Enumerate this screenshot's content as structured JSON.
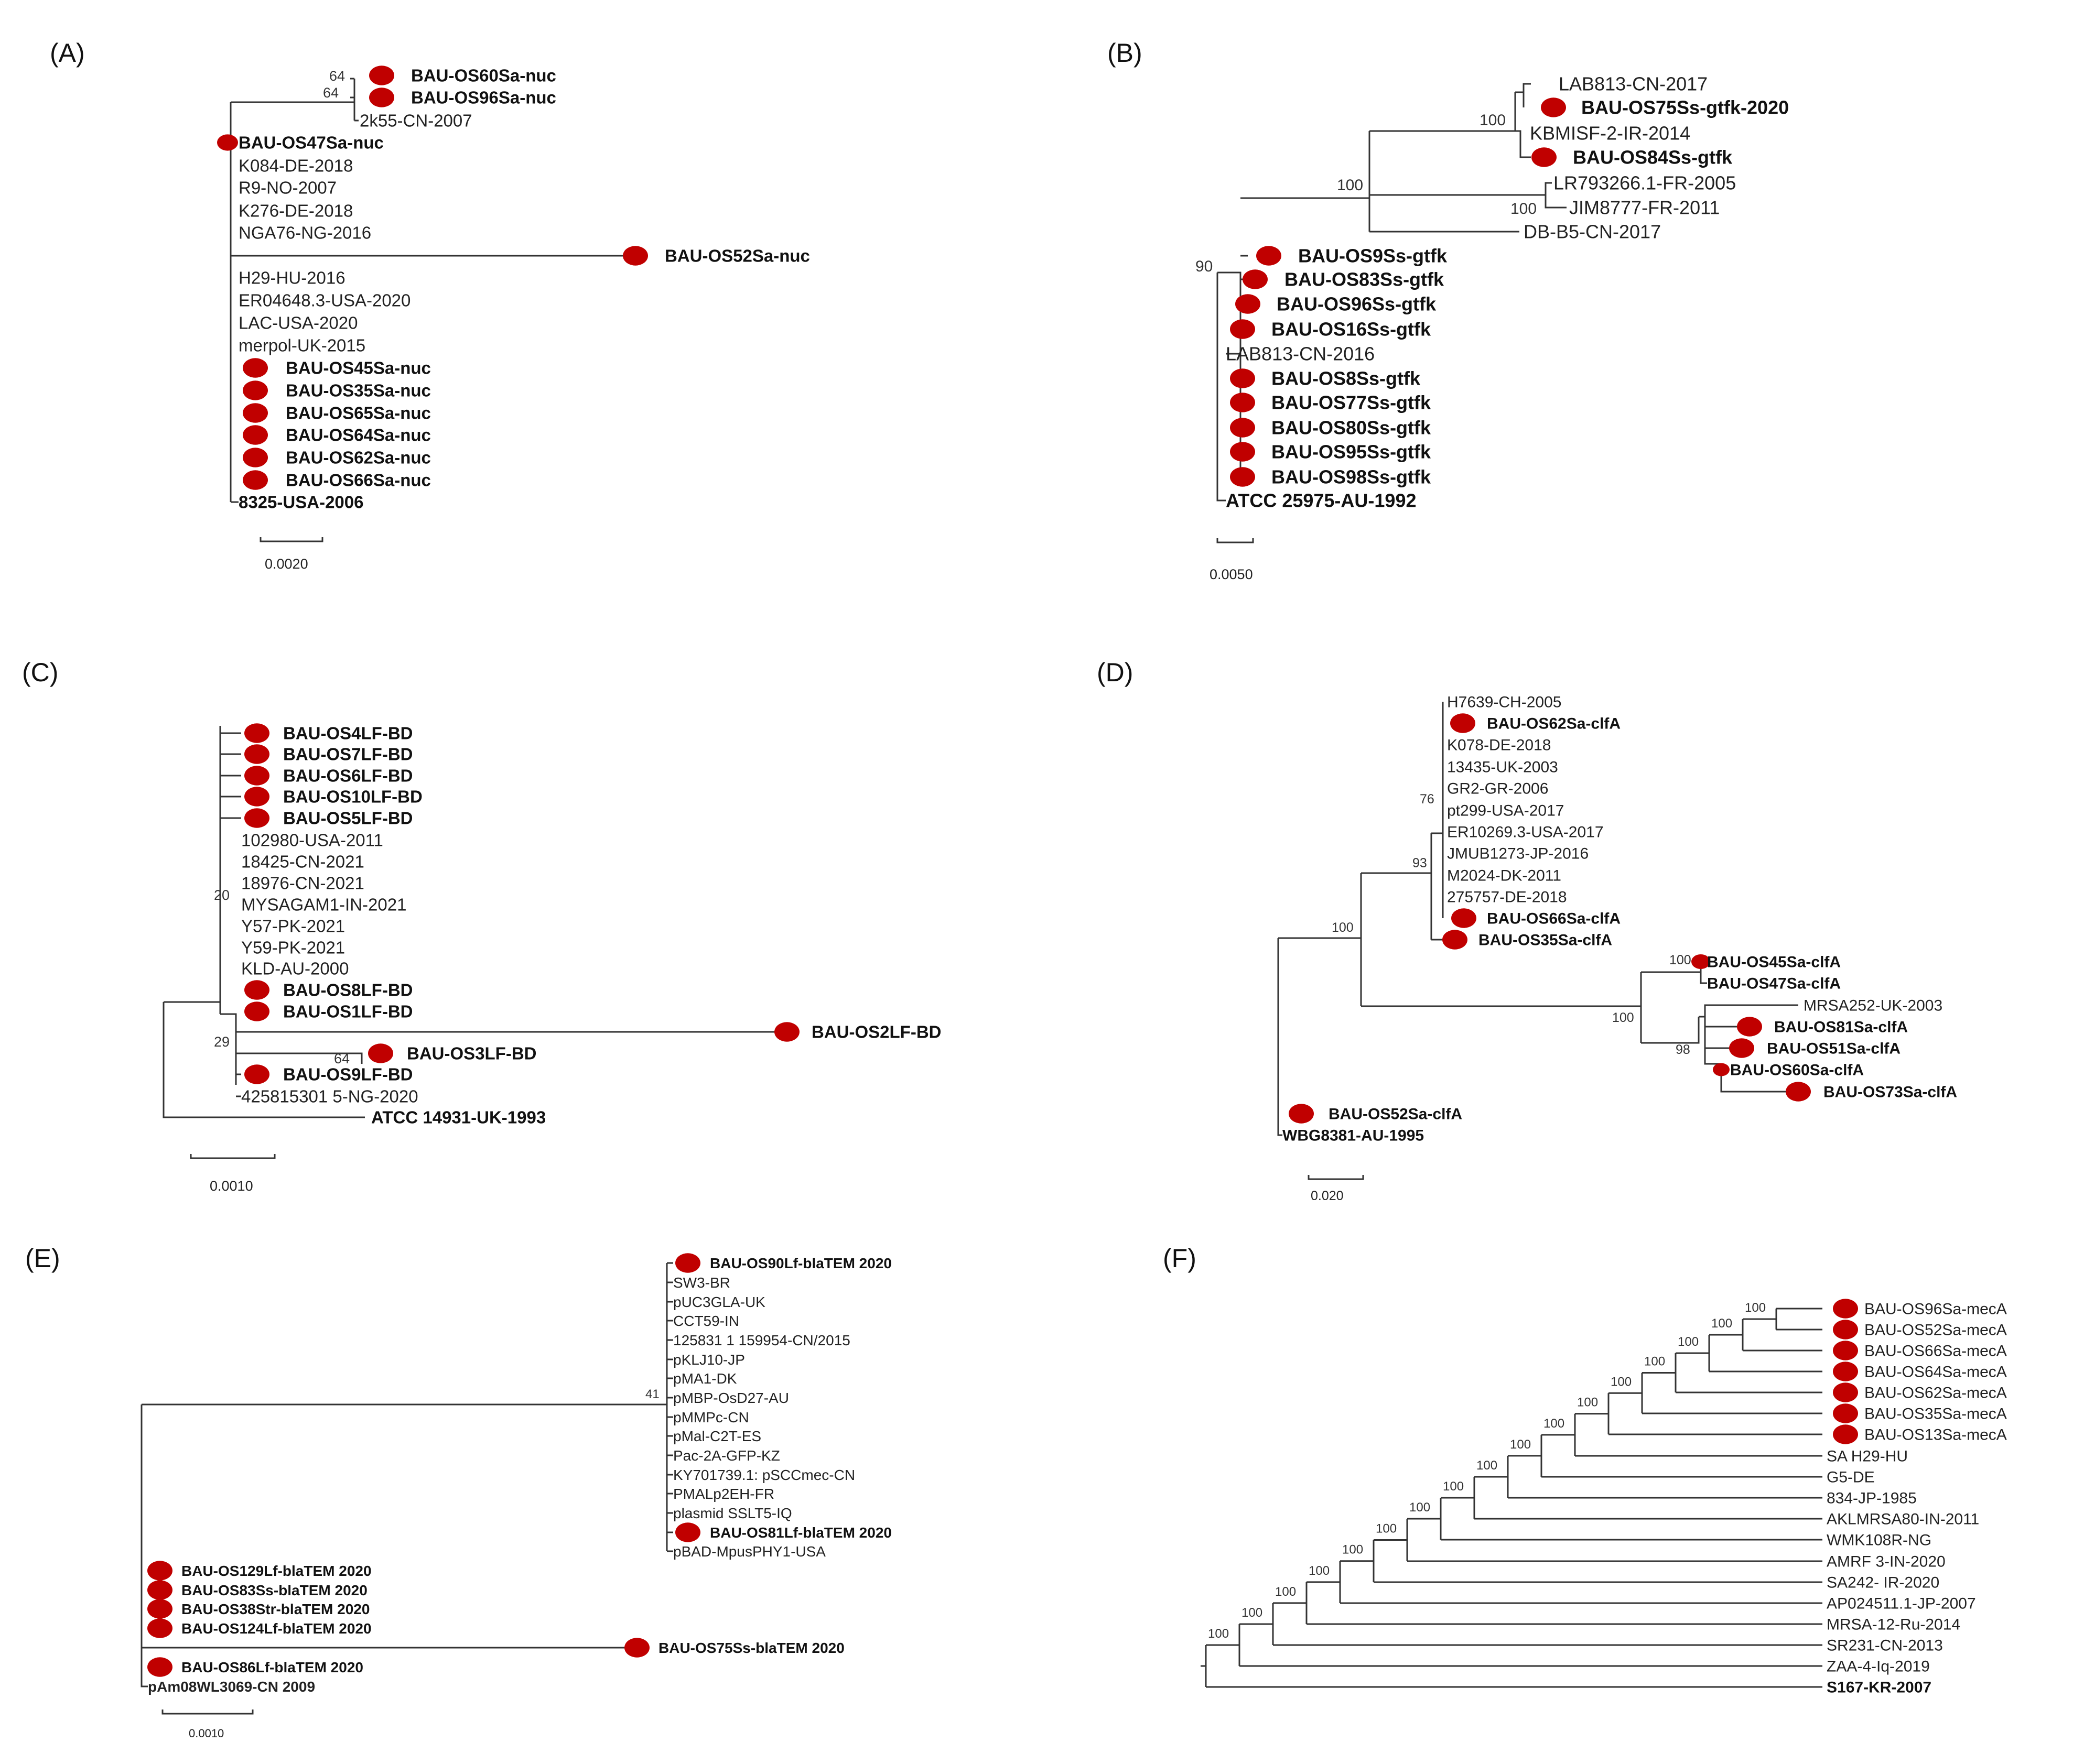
{
  "colors": {
    "marker": "#c00000",
    "outgroup": "#22b14c",
    "branch": "#333333",
    "text": "#222222"
  },
  "panels": [
    {
      "label": "(A)",
      "scale_label": "0.0020",
      "leaves": [
        {
          "text": "BAU-OS60Sa-nuc",
          "bold": true,
          "marker": true
        },
        {
          "text": "BAU-OS96Sa-nuc",
          "bold": true,
          "marker": true
        },
        {
          "text": "2k55-CN-2007",
          "bold": false,
          "marker": false
        },
        {
          "text": "BAU-OS47Sa-nuc",
          "bold": true,
          "marker": true
        },
        {
          "text": "K084-DE-2018",
          "bold": false,
          "marker": false
        },
        {
          "text": "R9-NO-2007",
          "bold": false,
          "marker": false
        },
        {
          "text": "K276-DE-2018",
          "bold": false,
          "marker": false
        },
        {
          "text": "NGA76-NG-2016",
          "bold": false,
          "marker": false
        },
        {
          "text": "BAU-OS52Sa-nuc",
          "bold": true,
          "marker": true
        },
        {
          "text": "H29-HU-2016",
          "bold": false,
          "marker": false
        },
        {
          "text": "ER04648.3-USA-2020",
          "bold": false,
          "marker": false
        },
        {
          "text": "LAC-USA-2020",
          "bold": false,
          "marker": false
        },
        {
          "text": "merpol-UK-2015",
          "bold": false,
          "marker": false
        },
        {
          "text": "BAU-OS45Sa-nuc",
          "bold": true,
          "marker": true
        },
        {
          "text": "BAU-OS35Sa-nuc",
          "bold": true,
          "marker": true
        },
        {
          "text": "BAU-OS65Sa-nuc",
          "bold": true,
          "marker": true
        },
        {
          "text": "BAU-OS64Sa-nuc",
          "bold": true,
          "marker": true
        },
        {
          "text": "BAU-OS62Sa-nuc",
          "bold": true,
          "marker": true
        },
        {
          "text": "BAU-OS66Sa-nuc",
          "bold": true,
          "marker": true
        },
        {
          "text": "8325-USA-2006",
          "bold": true,
          "marker": false,
          "outgroup": true
        }
      ],
      "bootstraps": [
        "64",
        "64"
      ]
    },
    {
      "label": "(B)",
      "scale_label": "0.0050",
      "leaves": [
        {
          "text": "LAB813-CN-2017",
          "bold": false,
          "marker": false
        },
        {
          "text": "BAU-OS75Ss-gtfk-2020",
          "bold": true,
          "marker": true
        },
        {
          "text": "KBMISF-2-IR-2014",
          "bold": false,
          "marker": false
        },
        {
          "text": "BAU-OS84Ss-gtfk",
          "bold": true,
          "marker": true
        },
        {
          "text": "LR793266.1-FR-2005",
          "bold": false,
          "marker": false
        },
        {
          "text": "JIM8777-FR-2011",
          "bold": false,
          "marker": false
        },
        {
          "text": "DB-B5-CN-2017",
          "bold": false,
          "marker": false
        },
        {
          "text": "BAU-OS9Ss-gtfk",
          "bold": true,
          "marker": true
        },
        {
          "text": "BAU-OS83Ss-gtfk",
          "bold": true,
          "marker": true
        },
        {
          "text": "BAU-OS96Ss-gtfk",
          "bold": true,
          "marker": true
        },
        {
          "text": "BAU-OS16Ss-gtfk",
          "bold": true,
          "marker": true
        },
        {
          "text": "LAB813-CN-2016",
          "bold": false,
          "marker": false
        },
        {
          "text": "BAU-OS8Ss-gtfk",
          "bold": true,
          "marker": true
        },
        {
          "text": "BAU-OS77Ss-gtfk",
          "bold": true,
          "marker": true
        },
        {
          "text": "BAU-OS80Ss-gtfk",
          "bold": true,
          "marker": true
        },
        {
          "text": "BAU-OS95Ss-gtfk",
          "bold": true,
          "marker": true
        },
        {
          "text": "BAU-OS98Ss-gtfk",
          "bold": true,
          "marker": true
        },
        {
          "text": "ATCC 25975-AU-1992",
          "bold": true,
          "marker": false,
          "outgroup": true
        }
      ],
      "bootstraps": [
        "100",
        "100",
        "100",
        "90"
      ]
    },
    {
      "label": "(C)",
      "scale_label": "0.0010",
      "leaves": [
        {
          "text": "BAU-OS4LF-BD",
          "bold": true,
          "marker": true
        },
        {
          "text": "BAU-OS7LF-BD",
          "bold": true,
          "marker": true
        },
        {
          "text": "BAU-OS6LF-BD",
          "bold": true,
          "marker": true
        },
        {
          "text": "BAU-OS10LF-BD",
          "bold": true,
          "marker": true
        },
        {
          "text": "BAU-OS5LF-BD",
          "bold": true,
          "marker": true
        },
        {
          "text": "102980-USA-2011",
          "bold": false,
          "marker": false
        },
        {
          "text": "18425-CN-2021",
          "bold": false,
          "marker": false
        },
        {
          "text": "18976-CN-2021",
          "bold": false,
          "marker": false
        },
        {
          "text": "MYSAGAM1-IN-2021",
          "bold": false,
          "marker": false
        },
        {
          "text": "Y57-PK-2021",
          "bold": false,
          "marker": false
        },
        {
          "text": "Y59-PK-2021",
          "bold": false,
          "marker": false
        },
        {
          "text": "KLD-AU-2000",
          "bold": false,
          "marker": false
        },
        {
          "text": "BAU-OS8LF-BD",
          "bold": true,
          "marker": true
        },
        {
          "text": "BAU-OS1LF-BD",
          "bold": true,
          "marker": true
        },
        {
          "text": "BAU-OS2LF-BD",
          "bold": true,
          "marker": true
        },
        {
          "text": "BAU-OS3LF-BD",
          "bold": true,
          "marker": true
        },
        {
          "text": "BAU-OS9LF-BD",
          "bold": true,
          "marker": true
        },
        {
          "text": "425815301 5-NG-2020",
          "bold": false,
          "marker": false
        },
        {
          "text": "ATCC 14931-UK-1993",
          "bold": true,
          "marker": false,
          "outgroup": true
        }
      ],
      "bootstraps": [
        "20",
        "29",
        "64"
      ]
    },
    {
      "label": "(D)",
      "scale_label": "0.020",
      "leaves": [
        {
          "text": "H7639-CH-2005",
          "bold": false,
          "marker": false
        },
        {
          "text": "BAU-OS62Sa-clfA",
          "bold": true,
          "marker": true
        },
        {
          "text": "K078-DE-2018",
          "bold": false,
          "marker": false
        },
        {
          "text": "13435-UK-2003",
          "bold": false,
          "marker": false
        },
        {
          "text": "GR2-GR-2006",
          "bold": false,
          "marker": false
        },
        {
          "text": "pt299-USA-2017",
          "bold": false,
          "marker": false
        },
        {
          "text": "ER10269.3-USA-2017",
          "bold": false,
          "marker": false
        },
        {
          "text": "JMUB1273-JP-2016",
          "bold": false,
          "marker": false
        },
        {
          "text": "M2024-DK-2011",
          "bold": false,
          "marker": false
        },
        {
          "text": "275757-DE-2018",
          "bold": false,
          "marker": false
        },
        {
          "text": "BAU-OS66Sa-clfA",
          "bold": true,
          "marker": true
        },
        {
          "text": "BAU-OS35Sa-clfA",
          "bold": true,
          "marker": true
        },
        {
          "text": "BAU-OS45Sa-clfA",
          "bold": true,
          "marker": true
        },
        {
          "text": "BAU-OS47Sa-clfA",
          "bold": true,
          "marker": false
        },
        {
          "text": "MRSA252-UK-2003",
          "bold": false,
          "marker": false
        },
        {
          "text": "BAU-OS81Sa-clfA",
          "bold": true,
          "marker": true
        },
        {
          "text": "BAU-OS51Sa-clfA",
          "bold": true,
          "marker": true
        },
        {
          "text": "BAU-OS60Sa-clfA",
          "bold": true,
          "marker": true
        },
        {
          "text": "BAU-OS73Sa-clfA",
          "bold": true,
          "marker": true
        },
        {
          "text": "BAU-OS52Sa-clfA",
          "bold": true,
          "marker": true
        },
        {
          "text": "WBG8381-AU-1995",
          "bold": true,
          "marker": false,
          "outgroup": true
        }
      ],
      "bootstraps": [
        "76",
        "93",
        "100",
        "100",
        "100",
        "98"
      ]
    },
    {
      "label": "(E)",
      "scale_label": "0.0010",
      "leaves": [
        {
          "text": "BAU-OS90Lf-blaTEM 2020",
          "bold": true,
          "marker": true
        },
        {
          "text": "SW3-BR",
          "bold": false,
          "marker": false
        },
        {
          "text": "pUC3GLA-UK",
          "bold": false,
          "marker": false
        },
        {
          "text": "CCT59-IN",
          "bold": false,
          "marker": false
        },
        {
          "text": "125831 1 159954-CN/2015",
          "bold": false,
          "marker": false
        },
        {
          "text": "pKLJ10-JP",
          "bold": false,
          "marker": false
        },
        {
          "text": "pMA1-DK",
          "bold": false,
          "marker": false
        },
        {
          "text": "pMBP-OsD27-AU",
          "bold": false,
          "marker": false
        },
        {
          "text": "pMMPc-CN",
          "bold": false,
          "marker": false
        },
        {
          "text": "pMal-C2T-ES",
          "bold": false,
          "marker": false
        },
        {
          "text": "Pac-2A-GFP-KZ",
          "bold": false,
          "marker": false
        },
        {
          "text": "KY701739.1: pSCCmec-CN",
          "bold": false,
          "marker": false
        },
        {
          "text": "PMALp2EH-FR",
          "bold": false,
          "marker": false
        },
        {
          "text": "plasmid SSLT5-IQ",
          "bold": false,
          "marker": false
        },
        {
          "text": "BAU-OS81Lf-blaTEM 2020",
          "bold": true,
          "marker": true
        },
        {
          "text": "pBAD-MpusPHY1-USA",
          "bold": false,
          "marker": false
        },
        {
          "text": "BAU-OS129Lf-blaTEM 2020",
          "bold": true,
          "marker": true
        },
        {
          "text": "BAU-OS83Ss-blaTEM 2020",
          "bold": true,
          "marker": true
        },
        {
          "text": "BAU-OS38Str-blaTEM 2020",
          "bold": true,
          "marker": true
        },
        {
          "text": "BAU-OS124Lf-blaTEM 2020",
          "bold": true,
          "marker": true
        },
        {
          "text": "BAU-OS75Ss-blaTEM 2020",
          "bold": true,
          "marker": true
        },
        {
          "text": "BAU-OS86Lf-blaTEM 2020",
          "bold": true,
          "marker": true
        },
        {
          "text": "pAm08WL3069-CN 2009",
          "bold": false,
          "marker": false,
          "outgroup": true
        }
      ],
      "bootstraps": [
        "41"
      ]
    },
    {
      "label": "(F)",
      "scale_label": "",
      "leaves": [
        {
          "text": "BAU-OS96Sa-mecA",
          "bold": false,
          "marker": true
        },
        {
          "text": "BAU-OS52Sa-mecA",
          "bold": false,
          "marker": true
        },
        {
          "text": "BAU-OS66Sa-mecA",
          "bold": false,
          "marker": true
        },
        {
          "text": "BAU-OS64Sa-mecA",
          "bold": false,
          "marker": true
        },
        {
          "text": "BAU-OS62Sa-mecA",
          "bold": false,
          "marker": true
        },
        {
          "text": "BAU-OS35Sa-mecA",
          "bold": false,
          "marker": true
        },
        {
          "text": "BAU-OS13Sa-mecA",
          "bold": false,
          "marker": true
        },
        {
          "text": "SA H29-HU",
          "bold": false,
          "marker": false
        },
        {
          "text": "G5-DE",
          "bold": false,
          "marker": false
        },
        {
          "text": "834-JP-1985",
          "bold": false,
          "marker": false
        },
        {
          "text": "AKLMRSA80-IN-2011",
          "bold": false,
          "marker": false
        },
        {
          "text": "WMK108R-NG",
          "bold": false,
          "marker": false
        },
        {
          "text": "AMRF 3-IN-2020",
          "bold": false,
          "marker": false
        },
        {
          "text": "SA242- IR-2020",
          "bold": false,
          "marker": false
        },
        {
          "text": "AP024511.1-JP-2007",
          "bold": false,
          "marker": false
        },
        {
          "text": "MRSA-12-Ru-2014",
          "bold": false,
          "marker": false
        },
        {
          "text": "SR231-CN-2013",
          "bold": false,
          "marker": false
        },
        {
          "text": "ZAA-4-Iq-2019",
          "bold": false,
          "marker": false
        },
        {
          "text": "S167-KR-2007",
          "bold": true,
          "marker": false,
          "outgroup": true
        }
      ],
      "bootstraps": [
        "100",
        "100",
        "100",
        "100",
        "100",
        "100",
        "100",
        "100",
        "100",
        "100",
        "100",
        "100",
        "100",
        "100",
        "100",
        "100",
        "100"
      ]
    }
  ]
}
